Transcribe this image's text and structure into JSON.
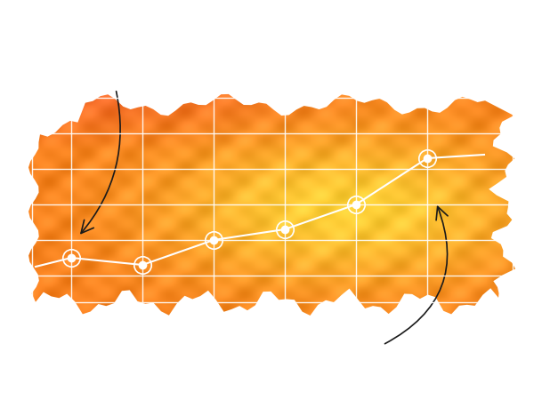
{
  "chart_data": {
    "type": "line",
    "x": [
      0.5,
      1,
      2,
      3,
      4,
      5,
      6,
      6.8
    ],
    "values": [
      1.25,
      1.5,
      1.3,
      2.0,
      2.3,
      3.0,
      4.3,
      4.4
    ],
    "xlim": [
      0.45,
      7.2
    ],
    "ylim": [
      0.25,
      6
    ],
    "xticks": [
      1,
      2,
      3,
      4,
      5,
      6
    ],
    "yticks": [
      1,
      2,
      3,
      4,
      5
    ],
    "grid": true,
    "tick_labels": false,
    "color": "#ffffff",
    "marker": "circle",
    "line_style": "solid"
  }
}
